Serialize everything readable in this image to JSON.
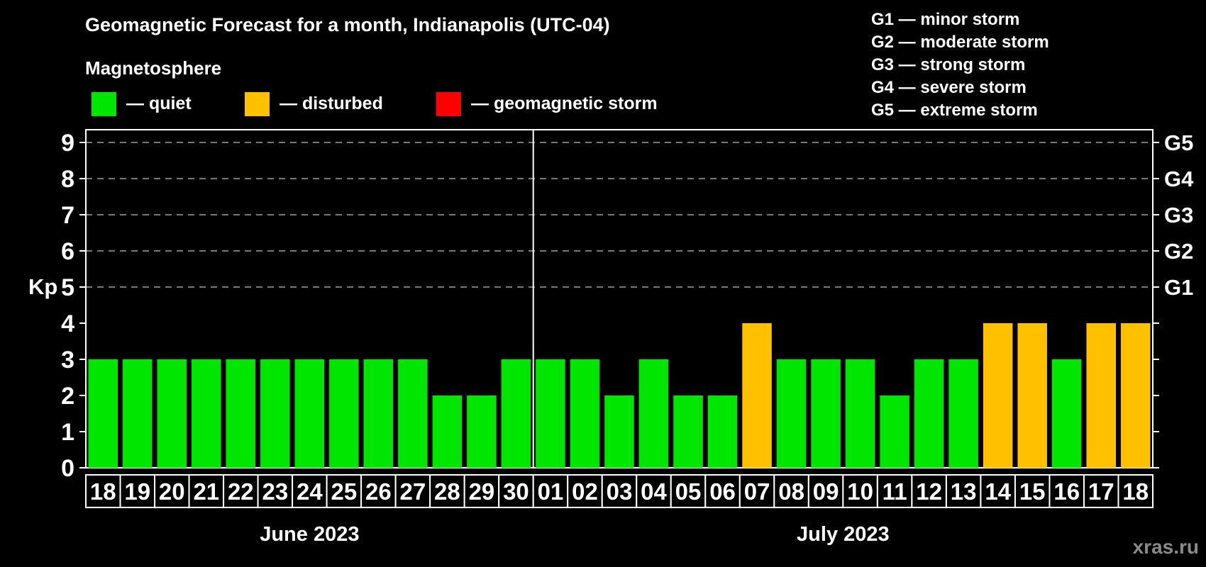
{
  "header": {
    "title": "Geomagnetic Forecast for a month, Indianapolis (UTC-04)",
    "subtitle": "Magnetosphere"
  },
  "legend": {
    "items": [
      {
        "label": "— quiet",
        "status": "quiet",
        "color": "#00e600"
      },
      {
        "label": "— disturbed",
        "status": "disturbed",
        "color": "#ffc000"
      },
      {
        "label": "— geomagnetic storm",
        "status": "storm",
        "color": "#ff0000"
      }
    ]
  },
  "g_legend": [
    "G1 — minor storm",
    "G2 — moderate storm",
    "G3 — strong storm",
    "G4 — severe storm",
    "G5 — extreme storm"
  ],
  "watermark": "xras.ru",
  "chart_data": {
    "type": "bar",
    "title": "Geomagnetic Forecast for a month, Indianapolis (UTC-04)",
    "xlabel": "",
    "ylabel": "Kp",
    "ylim": [
      0,
      9.35
    ],
    "yticks": [
      0,
      1,
      2,
      3,
      4,
      5,
      6,
      7,
      8,
      9
    ],
    "grid_kp": [
      5,
      6,
      7,
      8,
      9
    ],
    "grid_color": "#a0a0a0",
    "axis_color": "#ffffff",
    "right_scale": [
      {
        "kp": 5,
        "label": "G1"
      },
      {
        "kp": 6,
        "label": "G2"
      },
      {
        "kp": 7,
        "label": "G3"
      },
      {
        "kp": 8,
        "label": "G4"
      },
      {
        "kp": 9,
        "label": "G5"
      }
    ],
    "months": [
      {
        "label": "June 2023",
        "days": 13
      },
      {
        "label": "July 2023",
        "days": 18
      }
    ],
    "status_colors": {
      "quiet": "#00e600",
      "disturbed": "#ffc000",
      "storm": "#ff0000"
    },
    "points": [
      {
        "day": "18",
        "kp": 3,
        "status": "quiet"
      },
      {
        "day": "19",
        "kp": 3,
        "status": "quiet"
      },
      {
        "day": "20",
        "kp": 3,
        "status": "quiet"
      },
      {
        "day": "21",
        "kp": 3,
        "status": "quiet"
      },
      {
        "day": "22",
        "kp": 3,
        "status": "quiet"
      },
      {
        "day": "23",
        "kp": 3,
        "status": "quiet"
      },
      {
        "day": "24",
        "kp": 3,
        "status": "quiet"
      },
      {
        "day": "25",
        "kp": 3,
        "status": "quiet"
      },
      {
        "day": "26",
        "kp": 3,
        "status": "quiet"
      },
      {
        "day": "27",
        "kp": 3,
        "status": "quiet"
      },
      {
        "day": "28",
        "kp": 2,
        "status": "quiet"
      },
      {
        "day": "29",
        "kp": 2,
        "status": "quiet"
      },
      {
        "day": "30",
        "kp": 3,
        "status": "quiet"
      },
      {
        "day": "01",
        "kp": 3,
        "status": "quiet"
      },
      {
        "day": "02",
        "kp": 3,
        "status": "quiet"
      },
      {
        "day": "03",
        "kp": 2,
        "status": "quiet"
      },
      {
        "day": "04",
        "kp": 3,
        "status": "quiet"
      },
      {
        "day": "05",
        "kp": 2,
        "status": "quiet"
      },
      {
        "day": "06",
        "kp": 2,
        "status": "quiet"
      },
      {
        "day": "07",
        "kp": 4,
        "status": "disturbed"
      },
      {
        "day": "08",
        "kp": 3,
        "status": "quiet"
      },
      {
        "day": "09",
        "kp": 3,
        "status": "quiet"
      },
      {
        "day": "10",
        "kp": 3,
        "status": "quiet"
      },
      {
        "day": "11",
        "kp": 2,
        "status": "quiet"
      },
      {
        "day": "12",
        "kp": 3,
        "status": "quiet"
      },
      {
        "day": "13",
        "kp": 3,
        "status": "quiet"
      },
      {
        "day": "14",
        "kp": 4,
        "status": "disturbed"
      },
      {
        "day": "15",
        "kp": 4,
        "status": "disturbed"
      },
      {
        "day": "16",
        "kp": 3,
        "status": "quiet"
      },
      {
        "day": "17",
        "kp": 4,
        "status": "disturbed"
      },
      {
        "day": "18",
        "kp": 4,
        "status": "disturbed"
      }
    ]
  }
}
